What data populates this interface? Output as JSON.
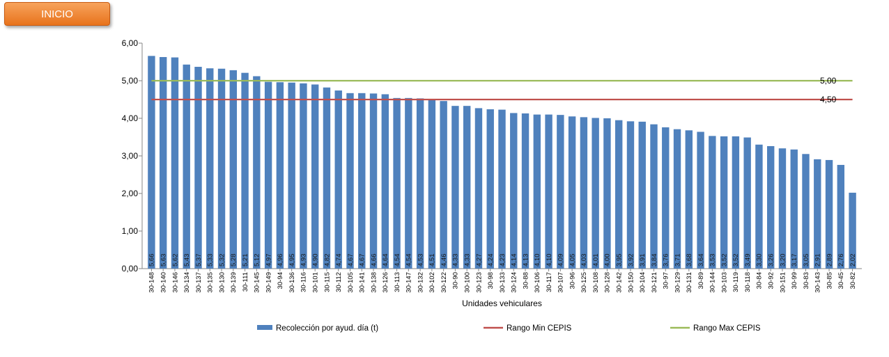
{
  "header": {
    "inicio_label": "INICIO"
  },
  "colors": {
    "bar": "#4f81bd",
    "min_line": "#c0504d",
    "max_line": "#9bbb59",
    "button": "#ed7d31"
  },
  "chart_data": {
    "type": "bar",
    "xlabel": "Unidades vehiculares",
    "ylabel": "",
    "ylim": [
      0,
      6
    ],
    "yticks": [
      "0,00",
      "1,00",
      "2,00",
      "3,00",
      "4,00",
      "5,00",
      "6,00"
    ],
    "categories": [
      "30-148",
      "30-140",
      "30-146",
      "30-134",
      "30-137",
      "30-135",
      "30-130",
      "30-139",
      "30-111",
      "30-145",
      "30-149",
      "30-94",
      "30-136",
      "30-116",
      "30-101",
      "30-115",
      "30-112",
      "30-105",
      "30-141",
      "30-138",
      "30-126",
      "30-113",
      "30-147",
      "30-132",
      "30-102",
      "30-122",
      "30-90",
      "30-100",
      "30-123",
      "30-98",
      "30-133",
      "30-124",
      "30-88",
      "30-106",
      "30-117",
      "30-107",
      "30-96",
      "30-125",
      "30-108",
      "30-128",
      "30-142",
      "30-150",
      "30-104",
      "30-121",
      "30-97",
      "30-129",
      "30-131",
      "30-89",
      "30-144",
      "30-103",
      "30-119",
      "30-118",
      "30-84",
      "30-92",
      "30-151",
      "30-99",
      "30-83",
      "30-143",
      "30-85",
      "30-45",
      "30-82"
    ],
    "series": [
      {
        "name": "Recolección por ayud. día (t)",
        "type": "bar",
        "values": [
          5.66,
          5.63,
          5.62,
          5.43,
          5.37,
          5.33,
          5.32,
          5.28,
          5.21,
          5.12,
          4.97,
          4.96,
          4.95,
          4.93,
          4.9,
          4.82,
          4.74,
          4.67,
          4.67,
          4.66,
          4.64,
          4.54,
          4.54,
          4.53,
          4.51,
          4.46,
          4.33,
          4.33,
          4.27,
          4.24,
          4.23,
          4.14,
          4.13,
          4.1,
          4.1,
          4.09,
          4.05,
          4.03,
          4.01,
          4.0,
          3.95,
          3.92,
          3.91,
          3.84,
          3.76,
          3.71,
          3.68,
          3.64,
          3.53,
          3.52,
          3.52,
          3.49,
          3.3,
          3.26,
          3.2,
          3.17,
          3.05,
          2.91,
          2.89,
          2.76,
          2.02
        ],
        "labels": [
          "5,66",
          "5,63",
          "5,62",
          "5,43",
          "5,37",
          "5,33",
          "5,32",
          "5,28",
          "5,21",
          "5,12",
          "4,97",
          "4,96",
          "4,95",
          "4,93",
          "4,90",
          "4,82",
          "4,74",
          "4,67",
          "4,67",
          "4,66",
          "4,64",
          "4,54",
          "4,54",
          "4,53",
          "4,51",
          "4,46",
          "4,33",
          "4,33",
          "4,27",
          "4,24",
          "4,23",
          "4,14",
          "4,13",
          "4,10",
          "4,10",
          "4,09",
          "4,05",
          "4,03",
          "4,01",
          "4,00",
          "3,95",
          "3,92",
          "3,91",
          "3,84",
          "3,76",
          "3,71",
          "3,68",
          "3,64",
          "3,53",
          "3,52",
          "3,52",
          "3,49",
          "3,30",
          "3,26",
          "3,20",
          "3,17",
          "3,05",
          "2,91",
          "2,89",
          "2,76",
          "2,02"
        ]
      },
      {
        "name": "Rango Min CEPIS",
        "type": "line",
        "value": 4.5,
        "label": "4,50"
      },
      {
        "name": "Rango Max CEPIS",
        "type": "line",
        "value": 5.0,
        "label": "5,00"
      }
    ],
    "grid": false,
    "legend_position": "bottom"
  }
}
